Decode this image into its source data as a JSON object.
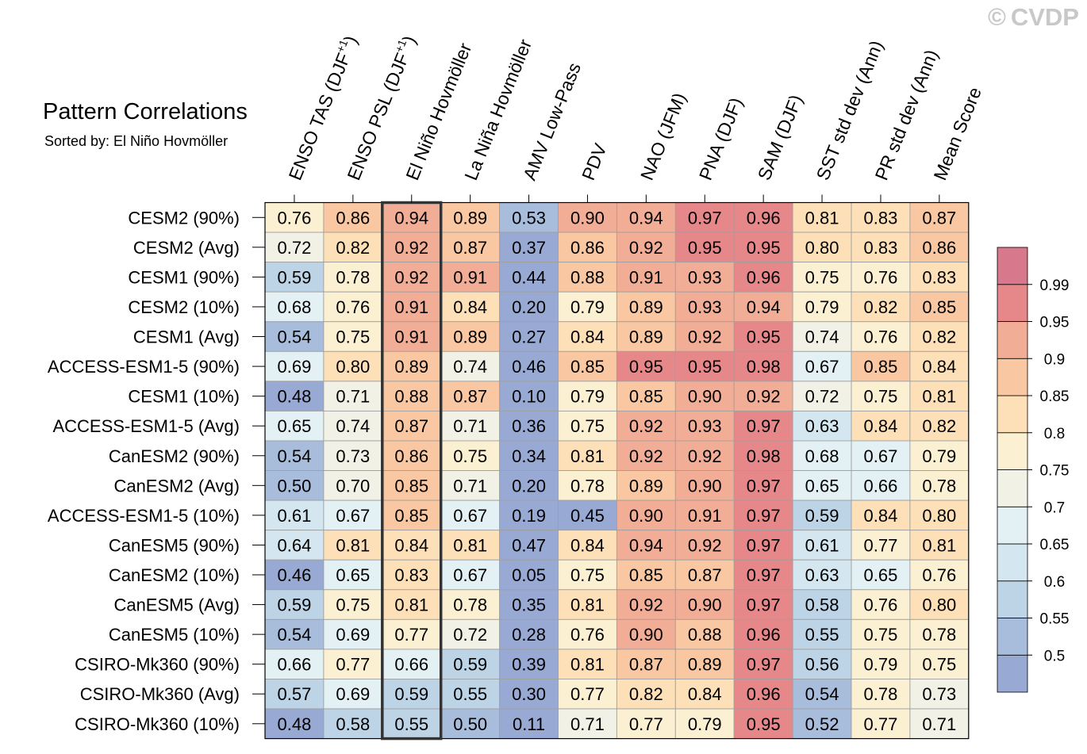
{
  "chart_data": {
    "type": "heatmap",
    "title": "Pattern Correlations",
    "subtitle": "Sorted by: El Niño Hovmöller",
    "watermark": "CVDP",
    "watermark_symbol": "©",
    "columns": [
      "ENSO TAS (DJF+1)",
      "ENSO PSL (DJF+1)",
      "El Niño Hovmöller",
      "La Niña Hovmöller",
      "AMV Low-Pass",
      "PDV",
      "NAO (JFM)",
      "PNA (DJF)",
      "SAM (DJF)",
      "SST std dev (Ann)",
      "PR std dev (Ann)",
      "Mean Score"
    ],
    "column_labels": [
      {
        "text": "ENSO TAS (DJF",
        "sup": "+1",
        "tail": ")"
      },
      {
        "text": "ENSO PSL (DJF",
        "sup": "+1",
        "tail": ")"
      },
      {
        "text": "El Niño Hovmöller",
        "sup": "",
        "tail": ""
      },
      {
        "text": "La Niña Hovmöller",
        "sup": "",
        "tail": ""
      },
      {
        "text": "AMV Low-Pass",
        "sup": "",
        "tail": ""
      },
      {
        "text": "PDV",
        "sup": "",
        "tail": ""
      },
      {
        "text": "NAO (JFM)",
        "sup": "",
        "tail": ""
      },
      {
        "text": "PNA (DJF)",
        "sup": "",
        "tail": ""
      },
      {
        "text": "SAM (DJF)",
        "sup": "",
        "tail": ""
      },
      {
        "text": "SST std dev (Ann)",
        "sup": "",
        "tail": ""
      },
      {
        "text": "PR std dev (Ann)",
        "sup": "",
        "tail": ""
      },
      {
        "text": "Mean Score",
        "sup": "",
        "tail": ""
      }
    ],
    "rows": [
      "CESM2 (90%)",
      "CESM2 (Avg)",
      "CESM1 (90%)",
      "CESM2 (10%)",
      "CESM1 (Avg)",
      "ACCESS-ESM1-5 (90%)",
      "CESM1 (10%)",
      "ACCESS-ESM1-5 (Avg)",
      "CanESM2 (90%)",
      "CanESM2 (Avg)",
      "ACCESS-ESM1-5 (10%)",
      "CanESM5 (90%)",
      "CanESM2 (10%)",
      "CanESM5 (Avg)",
      "CanESM5 (10%)",
      "CSIRO-Mk360 (90%)",
      "CSIRO-Mk360 (Avg)",
      "CSIRO-Mk360 (10%)"
    ],
    "values": [
      [
        0.76,
        0.86,
        0.94,
        0.89,
        0.53,
        0.9,
        0.94,
        0.97,
        0.96,
        0.81,
        0.83,
        0.87
      ],
      [
        0.72,
        0.82,
        0.92,
        0.87,
        0.37,
        0.86,
        0.92,
        0.95,
        0.95,
        0.8,
        0.83,
        0.86
      ],
      [
        0.59,
        0.78,
        0.92,
        0.91,
        0.44,
        0.88,
        0.91,
        0.93,
        0.96,
        0.75,
        0.76,
        0.83
      ],
      [
        0.68,
        0.76,
        0.91,
        0.84,
        0.2,
        0.79,
        0.89,
        0.93,
        0.94,
        0.79,
        0.82,
        0.85
      ],
      [
        0.54,
        0.75,
        0.91,
        0.89,
        0.27,
        0.84,
        0.89,
        0.92,
        0.95,
        0.74,
        0.76,
        0.82
      ],
      [
        0.69,
        0.8,
        0.89,
        0.74,
        0.46,
        0.85,
        0.95,
        0.95,
        0.98,
        0.67,
        0.85,
        0.84
      ],
      [
        0.48,
        0.71,
        0.88,
        0.87,
        0.1,
        0.79,
        0.85,
        0.9,
        0.92,
        0.72,
        0.75,
        0.81
      ],
      [
        0.65,
        0.74,
        0.87,
        0.71,
        0.36,
        0.75,
        0.92,
        0.93,
        0.97,
        0.63,
        0.84,
        0.82
      ],
      [
        0.54,
        0.73,
        0.86,
        0.75,
        0.34,
        0.81,
        0.92,
        0.92,
        0.98,
        0.68,
        0.67,
        0.79
      ],
      [
        0.5,
        0.7,
        0.85,
        0.71,
        0.2,
        0.78,
        0.89,
        0.9,
        0.97,
        0.65,
        0.66,
        0.78
      ],
      [
        0.61,
        0.67,
        0.85,
        0.67,
        0.19,
        0.45,
        0.9,
        0.91,
        0.97,
        0.59,
        0.84,
        0.8
      ],
      [
        0.64,
        0.81,
        0.84,
        0.81,
        0.47,
        0.84,
        0.94,
        0.92,
        0.97,
        0.61,
        0.77,
        0.81
      ],
      [
        0.46,
        0.65,
        0.83,
        0.67,
        0.05,
        0.75,
        0.85,
        0.87,
        0.97,
        0.63,
        0.65,
        0.76
      ],
      [
        0.59,
        0.75,
        0.81,
        0.78,
        0.35,
        0.81,
        0.92,
        0.9,
        0.97,
        0.58,
        0.76,
        0.8
      ],
      [
        0.54,
        0.69,
        0.77,
        0.72,
        0.28,
        0.76,
        0.9,
        0.88,
        0.96,
        0.55,
        0.75,
        0.78
      ],
      [
        0.66,
        0.77,
        0.66,
        0.59,
        0.39,
        0.81,
        0.87,
        0.89,
        0.97,
        0.56,
        0.79,
        0.75
      ],
      [
        0.57,
        0.69,
        0.59,
        0.55,
        0.3,
        0.77,
        0.82,
        0.84,
        0.96,
        0.54,
        0.78,
        0.73
      ],
      [
        0.48,
        0.58,
        0.55,
        0.5,
        0.11,
        0.71,
        0.77,
        0.79,
        0.95,
        0.52,
        0.77,
        0.71
      ]
    ],
    "highlighted_column": "El Niño Hovmöller",
    "colorbar": {
      "levels": [
        0.5,
        0.55,
        0.6,
        0.65,
        0.7,
        0.75,
        0.8,
        0.85,
        0.9,
        0.95,
        0.99
      ],
      "labels": [
        "0.5",
        "0.55",
        "0.6",
        "0.65",
        "0.7",
        "0.75",
        "0.8",
        "0.85",
        "0.9",
        "0.95",
        "0.99"
      ],
      "colors": [
        "#98a9d3",
        "#a8bcdc",
        "#bdd3e6",
        "#d4e6ef",
        "#e4f1f4",
        "#f1f1e6",
        "#fcf0d2",
        "#fde0b8",
        "#f9c8a2",
        "#f2ad97",
        "#e6878a",
        "#d8788c"
      ]
    }
  }
}
